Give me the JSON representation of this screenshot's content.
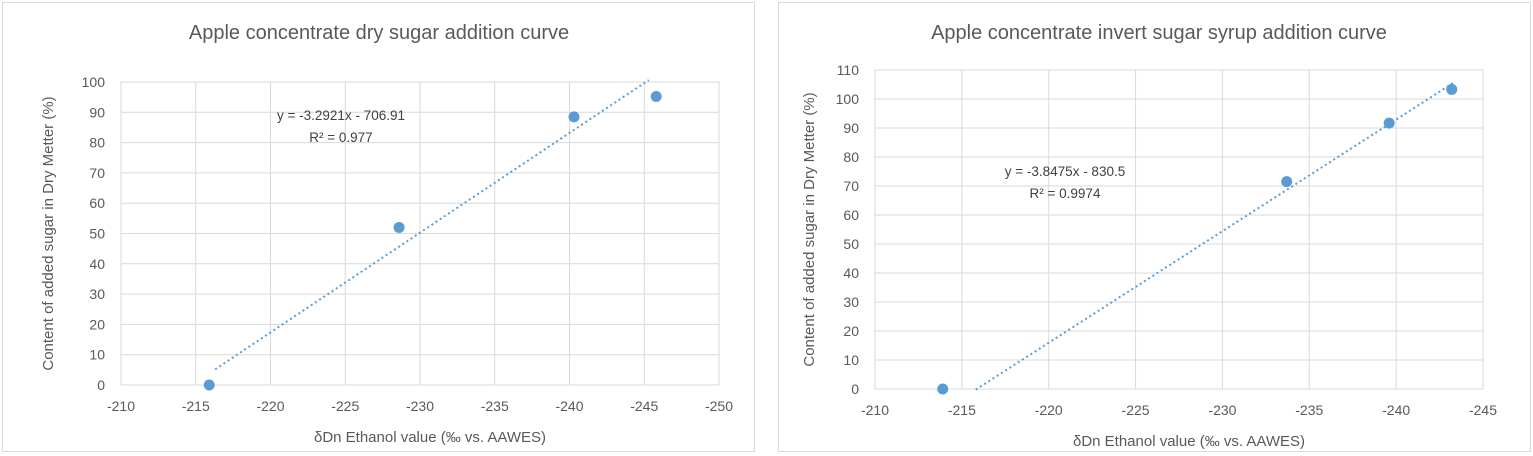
{
  "chart_data": [
    {
      "type": "scatter",
      "title": "Apple concentrate dry sugar addition curve",
      "xlabel": "δDn Ethanol value (‰ vs. AAWES)",
      "ylabel": "Content of added sugar in Dry Metter (%)",
      "xlim": [
        -210,
        -250
      ],
      "ylim": [
        0,
        100
      ],
      "xticks": [
        -210,
        -215,
        -220,
        -225,
        -230,
        -235,
        -240,
        -245,
        -250
      ],
      "yticks": [
        0,
        10,
        20,
        30,
        40,
        50,
        60,
        70,
        80,
        90,
        100
      ],
      "grid": true,
      "legend": "none",
      "series": [
        {
          "x": [
            -215.9,
            -228.6,
            -240.3,
            -245.8
          ],
          "y": [
            0,
            52,
            88.5,
            95.2
          ]
        }
      ],
      "trendline": {
        "slope": -3.2921,
        "intercept": -706.91,
        "x_range": [
          -216.3,
          -245.3
        ]
      },
      "equation": "y = -3.2921x - 706.91",
      "r2": "R² = 0.977",
      "color": "#5b9bd5"
    },
    {
      "type": "scatter",
      "title": "Apple concentrate invert sugar syrup addition curve",
      "xlabel": "δDn Ethanol value (‰ vs. AAWES)",
      "ylabel": "Content of added sugar in Dry Metter (%)",
      "xlim": [
        -210,
        -245
      ],
      "ylim": [
        0,
        110
      ],
      "xticks": [
        -210,
        -215,
        -220,
        -225,
        -230,
        -235,
        -240,
        -245
      ],
      "yticks": [
        0,
        10,
        20,
        30,
        40,
        50,
        60,
        70,
        80,
        90,
        100,
        110
      ],
      "grid": true,
      "legend": "none",
      "series": [
        {
          "x": [
            -213.9,
            -233.7,
            -239.6,
            -243.2
          ],
          "y": [
            0,
            71.5,
            91.7,
            103.3
          ]
        }
      ],
      "trendline": {
        "slope": -3.8475,
        "intercept": -830.5,
        "x_range": [
          -215.8,
          -243.3
        ]
      },
      "equation": "y = -3.8475x - 830.5",
      "r2": "R² = 0.9974",
      "color": "#5b9bd5"
    }
  ]
}
